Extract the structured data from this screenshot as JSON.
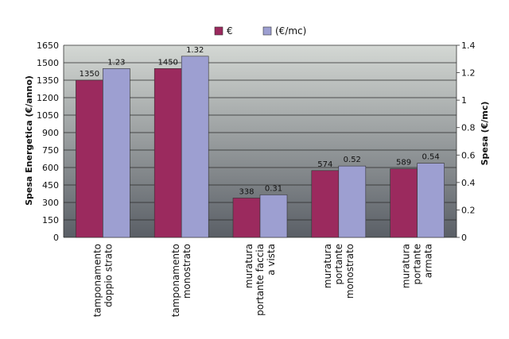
{
  "chart_data": {
    "type": "bar",
    "categories": [
      [
        "tamponamento",
        "doppio strato"
      ],
      [
        "tamponamento",
        "monostrato"
      ],
      [
        "muratura",
        "portante faccia",
        "a vista"
      ],
      [
        "muratura",
        "portante",
        "monostrato"
      ],
      [
        "muratura",
        "portante",
        "armata"
      ]
    ],
    "series": [
      {
        "name": "€",
        "axis": "left",
        "color": "#9b2a5e",
        "values": [
          1350,
          1450,
          338,
          574,
          589
        ],
        "labels": [
          "1350",
          "1450",
          "338",
          "574",
          "589"
        ]
      },
      {
        "name": "(€/mc)",
        "axis": "right",
        "color": "#9d9fd1",
        "values": [
          1.23,
          1.32,
          0.31,
          0.52,
          0.54
        ],
        "labels": [
          "1.23",
          "1.32",
          "0.31",
          "0.52",
          "0.54"
        ]
      }
    ],
    "y_left": {
      "label": "Spesa Energetica   (€/anno)",
      "range": [
        0,
        1650
      ],
      "ticks": [
        "0",
        "150",
        "300",
        "450",
        "600",
        "750",
        "900",
        "1050",
        "1200",
        "1350",
        "1500",
        "1650"
      ]
    },
    "y_right": {
      "label": "Spesa (€/mc)",
      "range": [
        0,
        1.4
      ],
      "ticks": [
        "0",
        "0.2",
        "0.4",
        "0.6",
        "0.8",
        "1",
        "1.2",
        "1.4"
      ]
    },
    "grid": true,
    "legend_position": "top-center",
    "colors": {
      "plot_top": "#d4d8d4",
      "plot_bottom": "#5a5f66",
      "grid": "#2a2a2a"
    }
  }
}
